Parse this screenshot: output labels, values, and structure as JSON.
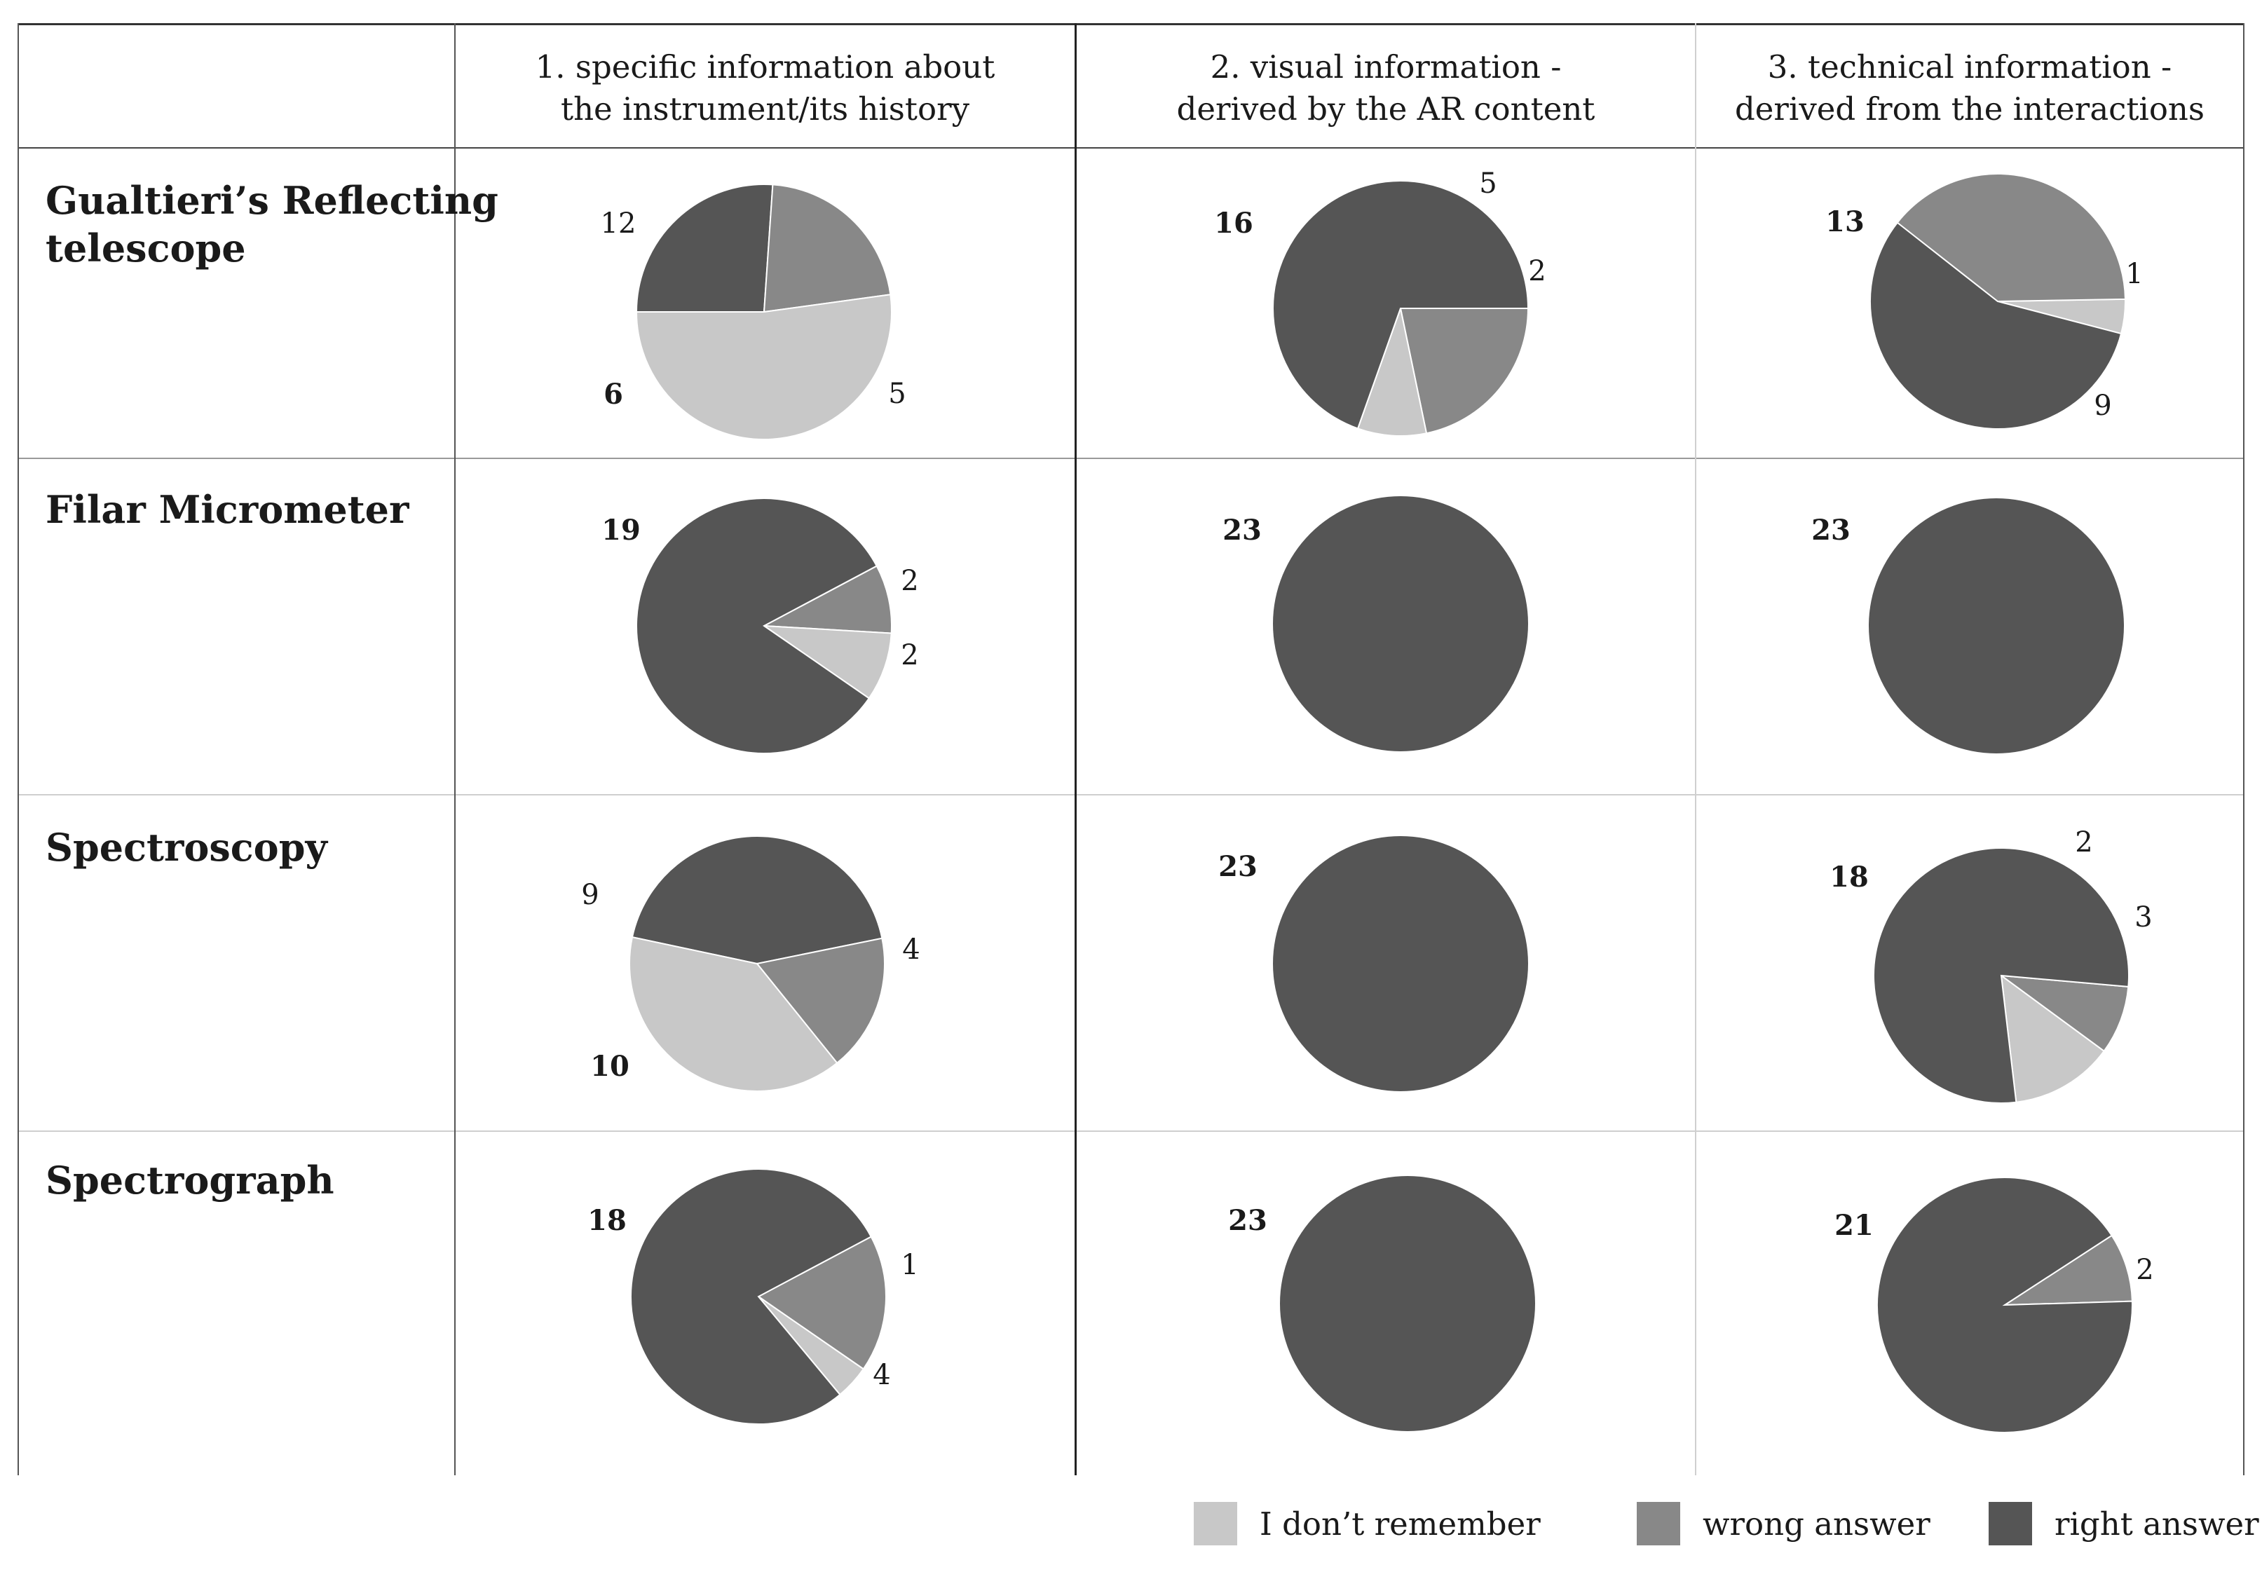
{
  "columns": [
    {
      "label": "1. specific information about\nthe instrument/its history"
    },
    {
      "label": "2. visual information -\nderived by the AR content"
    },
    {
      "label": "3.  technical information -\nderived from the interactions"
    }
  ],
  "rows": [
    {
      "label": "Gualtieri’s Reflecting\ntelescope"
    },
    {
      "label": "Filar Micrometer"
    },
    {
      "label": "Spectroscopy"
    },
    {
      "label": "Spectrograph"
    }
  ],
  "legend": [
    {
      "label": "I don’t remember",
      "color": "#c8c8c8"
    },
    {
      "label": "wrong answer",
      "color": "#888888"
    },
    {
      "label": "right answer",
      "color": "#555555"
    }
  ],
  "chart_data": [
    {
      "type": "pie",
      "instrument": "Gualtieri’s Reflecting telescope",
      "question": "1. specific information about the instrument/its history",
      "slices": [
        {
          "name": "I don’t remember",
          "value": 12
        },
        {
          "name": "wrong answer",
          "value": 5
        },
        {
          "name": "right answer",
          "value": 6
        }
      ]
    },
    {
      "type": "pie",
      "instrument": "Gualtieri’s Reflecting telescope",
      "question": "2. visual information - derived by the AR content",
      "slices": [
        {
          "name": "I don’t remember",
          "value": 2
        },
        {
          "name": "wrong answer",
          "value": 5
        },
        {
          "name": "right answer",
          "value": 16
        }
      ]
    },
    {
      "type": "pie",
      "instrument": "Gualtieri’s Reflecting telescope",
      "question": "3. technical information - derived from the interactions",
      "slices": [
        {
          "name": "I don’t remember",
          "value": 1
        },
        {
          "name": "wrong answer",
          "value": 9
        },
        {
          "name": "right answer",
          "value": 13
        }
      ]
    },
    {
      "type": "pie",
      "instrument": "Filar Micrometer",
      "question": "1. specific information about the instrument/its history",
      "slices": [
        {
          "name": "I don’t remember",
          "value": 2
        },
        {
          "name": "wrong answer",
          "value": 2
        },
        {
          "name": "right answer",
          "value": 19
        }
      ]
    },
    {
      "type": "pie",
      "instrument": "Filar Micrometer",
      "question": "2. visual information - derived by the AR content",
      "slices": [
        {
          "name": "I don’t remember",
          "value": 0
        },
        {
          "name": "wrong answer",
          "value": 0
        },
        {
          "name": "right answer",
          "value": 23
        }
      ]
    },
    {
      "type": "pie",
      "instrument": "Filar Micrometer",
      "question": "3. technical information - derived from the interactions",
      "slices": [
        {
          "name": "I don’t remember",
          "value": 0
        },
        {
          "name": "wrong answer",
          "value": 0
        },
        {
          "name": "right answer",
          "value": 23
        }
      ]
    },
    {
      "type": "pie",
      "instrument": "Spectroscopy",
      "question": "1. specific information about the instrument/its history",
      "slices": [
        {
          "name": "I don’t remember",
          "value": 9
        },
        {
          "name": "wrong answer",
          "value": 4
        },
        {
          "name": "right answer",
          "value": 10
        }
      ]
    },
    {
      "type": "pie",
      "instrument": "Spectroscopy",
      "question": "2. visual information - derived by the AR content",
      "slices": [
        {
          "name": "I don’t remember",
          "value": 0
        },
        {
          "name": "wrong answer",
          "value": 0
        },
        {
          "name": "right answer",
          "value": 23
        }
      ]
    },
    {
      "type": "pie",
      "instrument": "Spectroscopy",
      "question": "3. technical information - derived from the interactions",
      "slices": [
        {
          "name": "I don’t remember",
          "value": 3
        },
        {
          "name": "wrong answer",
          "value": 2
        },
        {
          "name": "right answer",
          "value": 18
        }
      ]
    },
    {
      "type": "pie",
      "instrument": "Spectrograph",
      "question": "1. specific information about the instrument/its history",
      "slices": [
        {
          "name": "I don’t remember",
          "value": 1
        },
        {
          "name": "wrong answer",
          "value": 4
        },
        {
          "name": "right answer",
          "value": 18
        }
      ]
    },
    {
      "type": "pie",
      "instrument": "Spectrograph",
      "question": "2. visual information - derived by the AR content",
      "slices": [
        {
          "name": "I don’t remember",
          "value": 0
        },
        {
          "name": "wrong answer",
          "value": 0
        },
        {
          "name": "right answer",
          "value": 23
        }
      ]
    },
    {
      "type": "pie",
      "instrument": "Spectrograph",
      "question": "3. technical information - derived from the interactions",
      "slices": [
        {
          "name": "I don’t remember",
          "value": 0
        },
        {
          "name": "wrong answer",
          "value": 2
        },
        {
          "name": "right answer",
          "value": 21
        }
      ]
    }
  ]
}
